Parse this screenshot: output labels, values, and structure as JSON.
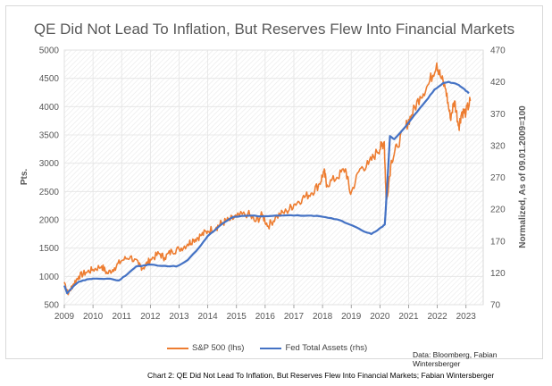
{
  "chart_data": {
    "type": "line",
    "title": "QE Did Not Lead To Inflation, But Reserves Flew Into Financial Markets",
    "ylabel_left": "Pts.",
    "ylabel_right": "Normalized, As of 09.01.2009=100",
    "ylim_left": [
      500,
      5000
    ],
    "ylim_right": [
      70,
      470
    ],
    "xlim": [
      2009,
      2023.6
    ],
    "x_ticks": [
      "2009",
      "2010",
      "2011",
      "2012",
      "2013",
      "2014",
      "2015",
      "2016",
      "2017",
      "2018",
      "2019",
      "2020",
      "2021",
      "2022",
      "2023"
    ],
    "y_ticks_left": [
      "500",
      "1000",
      "1500",
      "2000",
      "2500",
      "3000",
      "3500",
      "4000",
      "4500",
      "5000"
    ],
    "y_ticks_right": [
      "70",
      "120",
      "170",
      "220",
      "270",
      "320",
      "370",
      "420",
      "470"
    ],
    "grid": true,
    "legend_position": "bottom",
    "series": [
      {
        "name": "S&P 500 (lhs)",
        "axis": "left",
        "color": "#ED7D31",
        "x": [
          2009.0,
          2009.15,
          2009.3,
          2009.5,
          2009.75,
          2010.0,
          2010.3,
          2010.5,
          2010.75,
          2011.0,
          2011.3,
          2011.6,
          2011.75,
          2012.0,
          2012.3,
          2012.5,
          2012.75,
          2013.0,
          2013.3,
          2013.5,
          2013.75,
          2014.0,
          2014.3,
          2014.5,
          2014.75,
          2015.0,
          2015.4,
          2015.65,
          2015.9,
          2016.1,
          2016.4,
          2016.75,
          2017.0,
          2017.3,
          2017.6,
          2017.9,
          2018.05,
          2018.15,
          2018.5,
          2018.8,
          2018.98,
          2019.3,
          2019.6,
          2019.9,
          2020.05,
          2020.15,
          2020.22,
          2020.4,
          2020.6,
          2020.9,
          2021.1,
          2021.4,
          2021.7,
          2021.98,
          2022.1,
          2022.3,
          2022.45,
          2022.6,
          2022.75,
          2022.85,
          2023.0,
          2023.15
        ],
        "values": [
          900,
          700,
          850,
          1000,
          1070,
          1120,
          1180,
          1050,
          1150,
          1280,
          1350,
          1200,
          1150,
          1300,
          1400,
          1330,
          1450,
          1480,
          1570,
          1650,
          1720,
          1800,
          1870,
          1950,
          1990,
          2050,
          2110,
          1970,
          2080,
          1890,
          2060,
          2150,
          2270,
          2380,
          2470,
          2640,
          2860,
          2620,
          2750,
          2900,
          2450,
          2900,
          2980,
          3200,
          3300,
          3380,
          2300,
          3050,
          3300,
          3650,
          3850,
          4180,
          4400,
          4770,
          4550,
          4300,
          3800,
          4100,
          3650,
          3900,
          3900,
          4100
        ]
      },
      {
        "name": "Fed Total Assets (rhs)",
        "axis": "right",
        "color": "#4472C4",
        "x": [
          2009.0,
          2009.1,
          2009.3,
          2009.5,
          2009.8,
          2010.0,
          2010.5,
          2010.9,
          2011.2,
          2011.5,
          2011.8,
          2012.0,
          2012.5,
          2012.9,
          2013.3,
          2013.7,
          2014.0,
          2014.5,
          2014.9,
          2015.5,
          2016.0,
          2016.5,
          2017.0,
          2017.5,
          2017.9,
          2018.3,
          2018.7,
          2019.0,
          2019.4,
          2019.7,
          2019.85,
          2020.1,
          2020.17,
          2020.25,
          2020.35,
          2020.5,
          2020.8,
          2021.2,
          2021.6,
          2021.9,
          2022.2,
          2022.4,
          2022.7,
          2022.9,
          2023.1
        ],
        "values": [
          100,
          88,
          98,
          106,
          110,
          111,
          111,
          108,
          118,
          130,
          132,
          133,
          131,
          130,
          140,
          160,
          178,
          197,
          208,
          210,
          209,
          210,
          210,
          210,
          209,
          206,
          201,
          195,
          186,
          181,
          185,
          193,
          196,
          255,
          335,
          330,
          345,
          368,
          390,
          408,
          418,
          420,
          416,
          410,
          402
        ]
      }
    ],
    "legend": [
      "S&P 500 (lhs)",
      "Fed Total Assets (rhs)"
    ],
    "annotation": "Data: Bloomberg, Fabian Wintersberger"
  },
  "caption": "Chart 2: QE Did Not Lead To Inflation, But Reserves Flew Into Financial Markets; Fabian Wintersberger",
  "colors": {
    "sp500": "#ED7D31",
    "fed": "#4472C4",
    "grid": "#e4e4e4",
    "text": "#595959"
  }
}
